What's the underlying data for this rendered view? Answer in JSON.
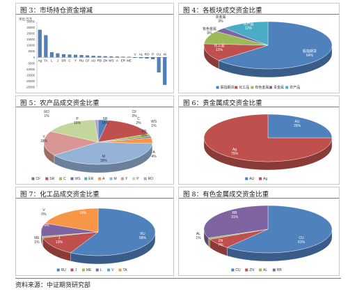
{
  "footer": "资料来源：中证期货研究部",
  "charts": [
    {
      "title": "图 3：市场持仓资金增减",
      "ylabel": "单位:万元"
    },
    {
      "title": "图 4：各板块成交资金比重"
    },
    {
      "title": "图 5：农产品成交资金比重"
    },
    {
      "title": "图 6：贵金属成交资金比重"
    },
    {
      "title": "图 7：化工品成交资金比重"
    },
    {
      "title": "图 8：有色金属成交资金比重"
    }
  ],
  "colors": {
    "blue": "#4F81BD",
    "red": "#C0504D",
    "green": "#9BBB59",
    "purple": "#8064A2",
    "teal": "#4BACC6",
    "orange": "#F79646",
    "lightblue": "#95B3D7",
    "pink": "#D99694",
    "lime": "#C3D69B",
    "lav": "#B3A2C7"
  },
  "chart_data": [
    {
      "type": "bar",
      "title": "图 3：市场持仓资金增减",
      "ylabel": "单位:万元",
      "categories": [
        "Ag",
        "TA",
        "L",
        "J",
        "SR",
        "C",
        "Y",
        "RU",
        "CF",
        "AU",
        "RB",
        "ZN",
        "WS",
        "A",
        "ER",
        "ME",
        "V",
        "AL",
        "RO",
        "P",
        "CU",
        "M"
      ],
      "values": [
        23000,
        18500,
        4200,
        3200,
        2500,
        2200,
        2000,
        1800,
        1500,
        1200,
        1000,
        800,
        600,
        500,
        400,
        300,
        -300,
        -600,
        -900,
        -1500,
        -12500,
        -23000
      ],
      "ylim": [
        -25000,
        30000
      ],
      "yticks": [
        30000,
        25000,
        20000,
        15000,
        10000,
        5000,
        0,
        -5000,
        -10000,
        -15000,
        -20000,
        -25000
      ],
      "grid": false
    },
    {
      "type": "pie",
      "title": "图 4：各板块成交资金比重",
      "labels": [
        "股指期货",
        "化工品",
        "有色金属",
        "贵金属",
        "农产品"
      ],
      "values": [
        64,
        12,
        9,
        3,
        12
      ],
      "display": [
        "股指期货\n64%",
        "化工品\n12%",
        "有色金属\n9%",
        "贵金属\n3%",
        "农产品\n12%"
      ],
      "legend": [
        "股指期货",
        "化工品",
        "有色金属",
        "贵金属",
        "农产品"
      ],
      "legend_position": "bottom"
    },
    {
      "type": "pie",
      "title": "图 5：农产品成交资金比重",
      "labels": [
        "CF",
        "SR",
        "C",
        "WS",
        "ER",
        "A",
        "M",
        "Y",
        "P",
        "RO"
      ],
      "values": [
        3,
        16,
        2,
        1,
        0,
        4,
        39,
        18,
        16,
        1
      ],
      "display": [
        "CF\n3%",
        "SR\n16%",
        "C\n2%",
        "WS\n1%",
        "ER\n0%",
        "A\n4%",
        "M\n39%",
        "Y\n18%",
        "P\n16%",
        "RO\n1%"
      ],
      "legend": [
        "CF",
        "SR",
        "C",
        "WS",
        "ER",
        "A",
        "M",
        "Y",
        "P",
        "RO"
      ],
      "legend_position": "bottom"
    },
    {
      "type": "pie",
      "title": "图 6：贵金属成交资金比重",
      "labels": [
        "AU",
        "Ag"
      ],
      "values": [
        25,
        75
      ],
      "display": [
        "AU\n25%",
        "Ag\n75%"
      ],
      "legend": [
        "AU",
        "Ag"
      ],
      "legend_position": "bottom"
    },
    {
      "type": "pie",
      "title": "图 7：化工品成交资金比重",
      "labels": [
        "RU",
        "J",
        "ME",
        "L",
        "V",
        "TA"
      ],
      "values": [
        58,
        13,
        1,
        9,
        0,
        19
      ],
      "display": [
        "RU\n58%",
        "J\n13%",
        "ME\n1%",
        "L\n9%",
        "V\n0%",
        "TA\n19%"
      ],
      "legend": [
        "RU",
        "J",
        "ME",
        "L",
        "V",
        "TA"
      ],
      "legend_position": "bottom"
    },
    {
      "type": "pie",
      "title": "图 8：有色金属成交资金比重",
      "labels": [
        "CU",
        "ZN",
        "AL",
        "RB"
      ],
      "values": [
        61,
        7,
        1,
        31
      ],
      "display": [
        "CU\n61%",
        "ZN\n7%",
        "AL\n1%",
        "RB\n31%"
      ],
      "legend": [
        "CU",
        "ZN",
        "AL",
        "RB"
      ],
      "legend_position": "bottom"
    }
  ]
}
